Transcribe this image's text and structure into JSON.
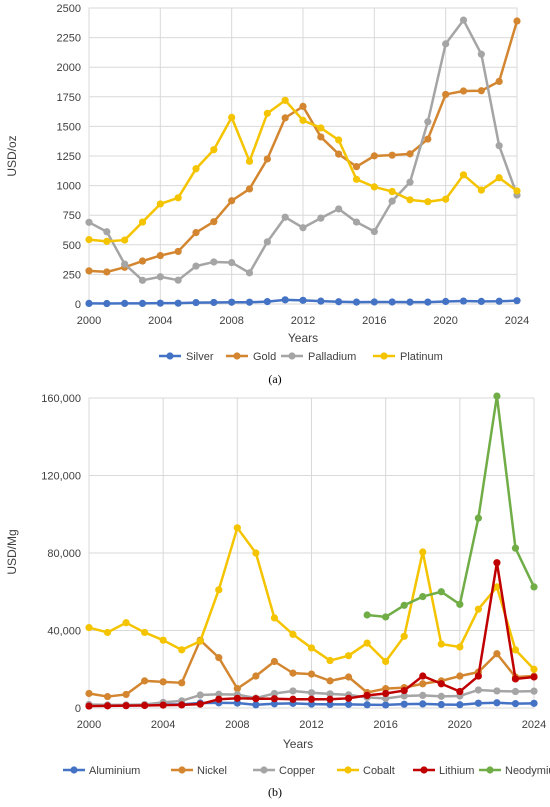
{
  "chart_data": [
    {
      "type": "line",
      "panel_label": "(a)",
      "xlabel": "Years",
      "ylabel": "USD/oz",
      "xlim": [
        2000,
        2024
      ],
      "ylim": [
        0,
        2500
      ],
      "x_ticks": [
        2000,
        2004,
        2008,
        2012,
        2016,
        2020,
        2024
      ],
      "y_ticks": [
        {
          "value": 0,
          "label": "0"
        },
        {
          "value": 250,
          "label": "250"
        },
        {
          "value": 500,
          "label": "500"
        },
        {
          "value": 750,
          "label": "750"
        },
        {
          "value": 1000,
          "label": "1000"
        },
        {
          "value": 1250,
          "label": "1250"
        },
        {
          "value": 1500,
          "label": "1500"
        },
        {
          "value": 1750,
          "label": "1750"
        },
        {
          "value": 2000,
          "label": "2000"
        },
        {
          "value": 2250,
          "label": "2250"
        },
        {
          "value": 2500,
          "label": "2500"
        }
      ],
      "grid": true,
      "legend_position": "bottom",
      "series": [
        {
          "name": "Silver",
          "color": "#4472C4",
          "x": [
            2000,
            2001,
            2002,
            2003,
            2004,
            2005,
            2006,
            2007,
            2008,
            2009,
            2010,
            2011,
            2012,
            2013,
            2014,
            2015,
            2016,
            2017,
            2018,
            2019,
            2020,
            2021,
            2022,
            2023,
            2024
          ],
          "y": [
            5,
            4,
            5,
            5,
            7,
            7,
            12,
            13,
            15,
            15,
            20,
            35,
            31,
            24,
            19,
            16,
            17,
            17,
            16,
            16,
            21,
            25,
            22,
            23,
            28
          ]
        },
        {
          "name": "Gold",
          "color": "#D3862F",
          "x": [
            2000,
            2001,
            2002,
            2003,
            2004,
            2005,
            2006,
            2007,
            2008,
            2009,
            2010,
            2011,
            2012,
            2013,
            2014,
            2015,
            2016,
            2017,
            2018,
            2019,
            2020,
            2021,
            2022,
            2023,
            2024
          ],
          "y": [
            280,
            271,
            310,
            363,
            409,
            444,
            603,
            695,
            872,
            972,
            1225,
            1572,
            1669,
            1411,
            1266,
            1160,
            1251,
            1257,
            1268,
            1393,
            1770,
            1799,
            1801,
            1880,
            2390
          ]
        },
        {
          "name": "Palladium",
          "color": "#A5A5A5",
          "x": [
            2000,
            2001,
            2002,
            2003,
            2004,
            2005,
            2006,
            2007,
            2008,
            2009,
            2010,
            2011,
            2012,
            2013,
            2014,
            2015,
            2016,
            2017,
            2018,
            2019,
            2020,
            2021,
            2022,
            2023,
            2024
          ],
          "y": [
            690,
            610,
            337,
            200,
            230,
            201,
            320,
            355,
            350,
            263,
            525,
            733,
            644,
            725,
            803,
            692,
            612,
            869,
            1029,
            1539,
            2197,
            2398,
            2110,
            1337,
            920
          ]
        },
        {
          "name": "Platinum",
          "color": "#F5C400",
          "x": [
            2000,
            2001,
            2002,
            2003,
            2004,
            2005,
            2006,
            2007,
            2008,
            2009,
            2010,
            2011,
            2012,
            2013,
            2014,
            2015,
            2016,
            2017,
            2018,
            2019,
            2020,
            2021,
            2022,
            2023,
            2024
          ],
          "y": [
            544,
            529,
            540,
            692,
            845,
            897,
            1142,
            1303,
            1576,
            1205,
            1610,
            1720,
            1551,
            1487,
            1385,
            1053,
            989,
            950,
            880,
            864,
            885,
            1091,
            962,
            1066,
            955
          ]
        }
      ]
    },
    {
      "type": "line",
      "panel_label": "(b)",
      "xlabel": "Years",
      "ylabel": "USD/Mg",
      "xlim": [
        2000,
        2024
      ],
      "ylim": [
        0,
        160000
      ],
      "x_ticks": [
        2000,
        2004,
        2008,
        2012,
        2016,
        2020,
        2024
      ],
      "y_ticks": [
        {
          "value": 0,
          "label": "0"
        },
        {
          "value": 40000,
          "label": "40,000"
        },
        {
          "value": 80000,
          "label": "80,000"
        },
        {
          "value": 120000,
          "label": "120,000"
        },
        {
          "value": 160000,
          "label": "160,000"
        }
      ],
      "grid": true,
      "legend_position": "bottom",
      "series": [
        {
          "name": "Aluminium",
          "color": "#4472C4",
          "x": [
            2000,
            2001,
            2002,
            2003,
            2004,
            2005,
            2006,
            2007,
            2008,
            2009,
            2010,
            2011,
            2012,
            2013,
            2014,
            2015,
            2016,
            2017,
            2018,
            2019,
            2020,
            2021,
            2022,
            2023,
            2024
          ],
          "y": [
            1550,
            1450,
            1350,
            1430,
            1720,
            1900,
            2570,
            2640,
            2570,
            1660,
            2170,
            2400,
            2020,
            1840,
            1870,
            1660,
            1600,
            1970,
            2110,
            1790,
            1700,
            2470,
            2700,
            2250,
            2400
          ]
        },
        {
          "name": "Nickel",
          "color": "#D3862F",
          "x": [
            2000,
            2001,
            2002,
            2003,
            2004,
            2005,
            2006,
            2007,
            2008,
            2009,
            2010,
            2011,
            2012,
            2013,
            2014,
            2015,
            2016,
            2017,
            2018,
            2019,
            2020,
            2021,
            2022,
            2023,
            2024
          ],
          "y": [
            7500,
            5900,
            7000,
            14000,
            13500,
            13000,
            35000,
            26000,
            10000,
            16500,
            24000,
            18000,
            17500,
            14000,
            16000,
            8000,
            10000,
            10500,
            12500,
            14000,
            16500,
            18500,
            28000,
            16000,
            16500
          ]
        },
        {
          "name": "Copper",
          "color": "#A5A5A5",
          "x": [
            2000,
            2001,
            2002,
            2003,
            2004,
            2005,
            2006,
            2007,
            2008,
            2009,
            2010,
            2011,
            2012,
            2013,
            2014,
            2015,
            2016,
            2017,
            2018,
            2019,
            2020,
            2021,
            2022,
            2023,
            2024
          ],
          "y": [
            1800,
            1600,
            1600,
            1800,
            2900,
            3700,
            6700,
            7100,
            6900,
            5100,
            7500,
            8800,
            7900,
            7300,
            6800,
            5500,
            4900,
            6200,
            6500,
            6000,
            6200,
            9300,
            8800,
            8500,
            8700
          ]
        },
        {
          "name": "Cobalt",
          "color": "#F5C400",
          "x": [
            2000,
            2001,
            2002,
            2003,
            2004,
            2005,
            2006,
            2007,
            2008,
            2009,
            2010,
            2011,
            2012,
            2013,
            2014,
            2015,
            2016,
            2017,
            2018,
            2019,
            2020,
            2021,
            2022,
            2023,
            2024
          ],
          "y": [
            41500,
            39000,
            44000,
            39000,
            35000,
            30000,
            34500,
            61000,
            93000,
            80000,
            46500,
            38000,
            31000,
            24500,
            27000,
            33500,
            24000,
            37000,
            80500,
            33000,
            31500,
            51000,
            62500,
            30000,
            20000
          ]
        },
        {
          "name": "Lithium",
          "color": "#C00000",
          "x": [
            2000,
            2001,
            2002,
            2003,
            2004,
            2005,
            2006,
            2007,
            2008,
            2009,
            2010,
            2011,
            2012,
            2013,
            2014,
            2015,
            2016,
            2017,
            2018,
            2019,
            2020,
            2021,
            2022,
            2023,
            2024
          ],
          "y": [
            1000,
            1100,
            1200,
            1300,
            1500,
            1600,
            2000,
            4500,
            5000,
            4800,
            4800,
            4500,
            4500,
            4500,
            5000,
            6500,
            7500,
            9000,
            16500,
            12500,
            8500,
            16500,
            75000,
            15000,
            16000
          ]
        },
        {
          "name": "Neodymium",
          "color": "#70AD47",
          "x": [
            2015,
            2016,
            2017,
            2018,
            2019,
            2020,
            2021,
            2022,
            2023,
            2024
          ],
          "y": [
            48000,
            47000,
            53000,
            57500,
            60000,
            53500,
            98000,
            161000,
            82500,
            62500
          ]
        }
      ]
    }
  ]
}
